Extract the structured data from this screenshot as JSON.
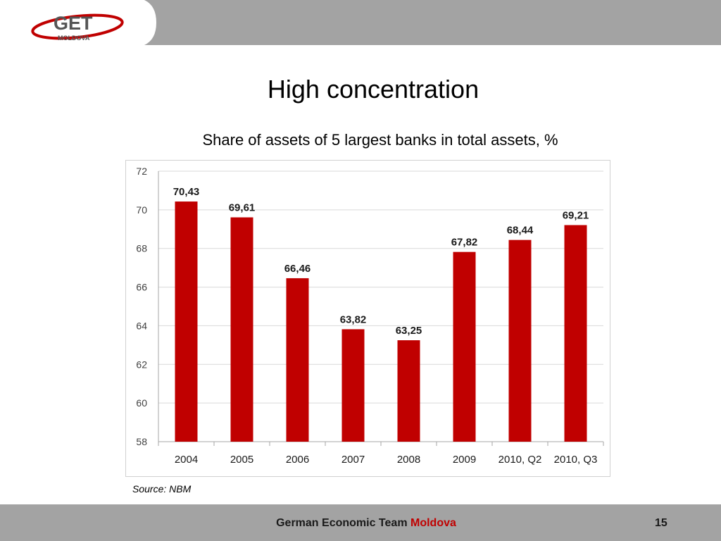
{
  "logo": {
    "main": "GET",
    "sub": "MOLDOVA"
  },
  "slide_title": "High concentration",
  "source_note": "Source: NBM",
  "footer": {
    "text": "German Economic Team",
    "accent": "Moldova",
    "page": "15"
  },
  "colors": {
    "bar": "#c00000",
    "band": "#a3a3a3",
    "accent": "#c00000"
  },
  "chart_data": {
    "type": "bar",
    "title": "Share of assets of 5 largest banks in total assets, %",
    "categories": [
      "2004",
      "2005",
      "2006",
      "2007",
      "2008",
      "2009",
      "2010, Q2",
      "2010, Q3"
    ],
    "values": [
      70.43,
      69.61,
      66.46,
      63.82,
      63.25,
      67.82,
      68.44,
      69.21
    ],
    "data_labels": [
      "70,43",
      "69,61",
      "66,46",
      "63,82",
      "63,25",
      "67,82",
      "68,44",
      "69,21"
    ],
    "ylim": [
      58,
      72
    ],
    "yticks": [
      58,
      60,
      62,
      64,
      66,
      68,
      70,
      72
    ],
    "grid": true,
    "xlabel": "",
    "ylabel": ""
  }
}
